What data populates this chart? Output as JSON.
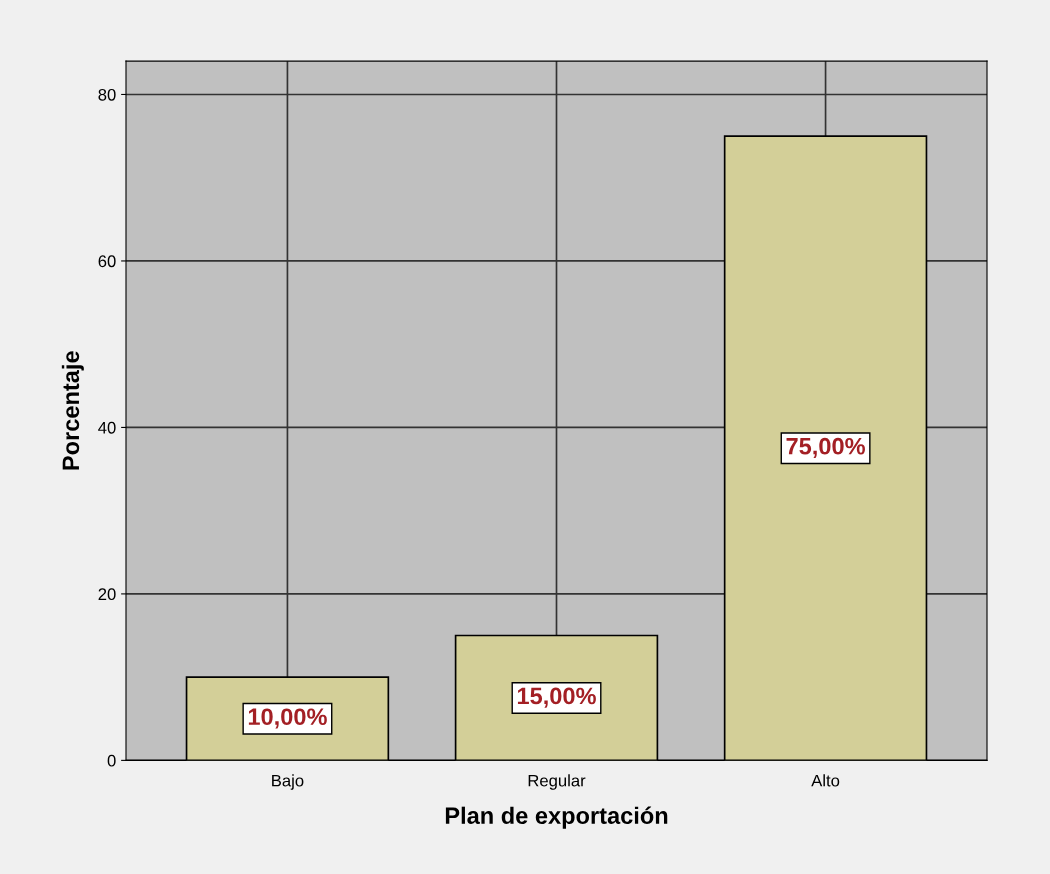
{
  "chart_data": {
    "type": "bar",
    "xlabel": "Plan de exportación",
    "ylabel": "Porcentaje",
    "categories": [
      "Bajo",
      "Regular",
      "Alto"
    ],
    "values": [
      10,
      15,
      75
    ],
    "value_labels": [
      "10,00%",
      "15,00%",
      "75,00%"
    ],
    "color": "#d3cf98",
    "ylim": [
      0,
      84
    ],
    "yticks": [
      0,
      20,
      40,
      60,
      80
    ],
    "grid": true
  }
}
